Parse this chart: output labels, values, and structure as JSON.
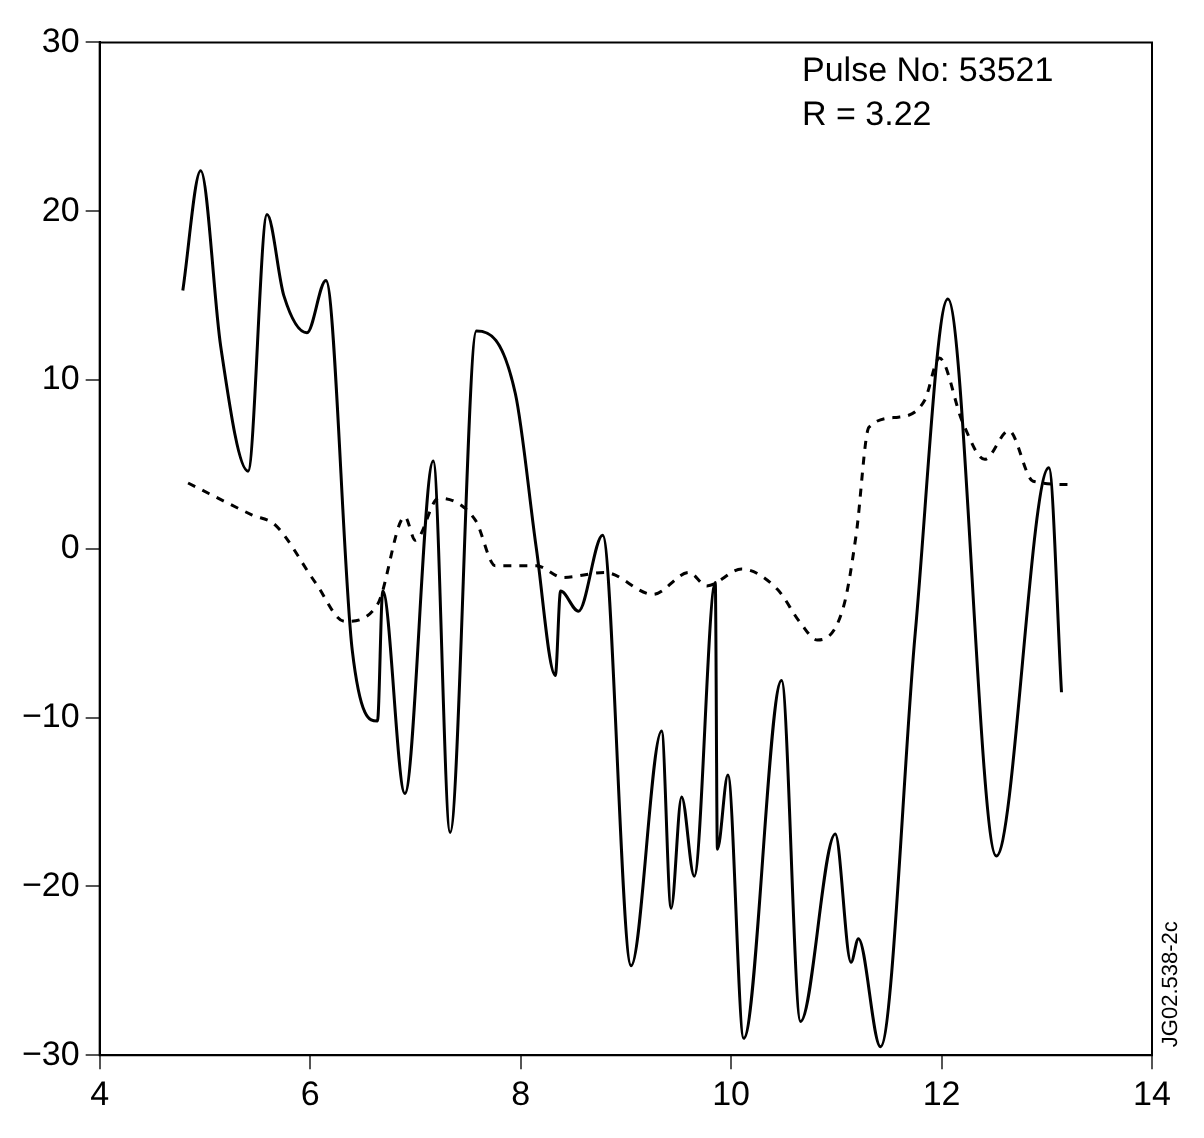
{
  "chart_data": {
    "type": "line",
    "xlim": [
      4,
      14
    ],
    "ylim": [
      -30,
      30
    ],
    "xticks": [
      4,
      6,
      8,
      10,
      12,
      14
    ],
    "yticks": [
      -30,
      -20,
      -10,
      0,
      10,
      20,
      30
    ],
    "grid": false,
    "legend": false,
    "marker": "none",
    "annotations": [
      "Pulse No: 53521",
      "R = 3.22",
      "JG02.538-2c"
    ],
    "series": [
      {
        "color": "#000000",
        "line_style": "solid",
        "x": [
          4.79,
          4.96,
          5.15,
          5.41,
          5.59,
          5.75,
          5.97,
          6.15,
          6.4,
          6.64,
          6.69,
          6.9,
          7.17,
          7.33,
          7.58,
          7.95,
          8.15,
          8.33,
          8.38,
          8.55,
          8.78,
          9.05,
          9.34,
          9.43,
          9.53,
          9.65,
          9.85,
          9.87,
          9.97,
          10.12,
          10.48,
          10.66,
          10.99,
          11.14,
          11.21,
          11.42,
          11.75,
          12.06,
          12.52,
          13.02,
          13.14
        ],
        "values": [
          15.3,
          22.4,
          12,
          4.6,
          19.8,
          15,
          12.8,
          15.9,
          -6,
          -10.2,
          -2.5,
          -14.5,
          5.2,
          -16.8,
          12.9,
          9.2,
          0,
          -7.5,
          -2.5,
          -3.7,
          0.8,
          -24.7,
          -10.8,
          -21.3,
          -14.7,
          -19.4,
          -2,
          -17.8,
          -13.4,
          -29,
          -7.8,
          -28,
          -16.9,
          -24.5,
          -23.1,
          -29.5,
          -5,
          14.8,
          -18.2,
          4.8,
          -8.5
        ]
      },
      {
        "color": "#000000",
        "line_style": "dashed",
        "x": [
          4.84,
          5.45,
          5.67,
          6.05,
          6.33,
          6.64,
          6.9,
          7.0,
          7.22,
          7.57,
          7.76,
          8.15,
          8.4,
          8.8,
          9.26,
          9.6,
          9.77,
          10.1,
          10.44,
          10.66,
          10.82,
          11.07,
          11.19,
          11.31,
          11.59,
          11.84,
          11.98,
          12.2,
          12.41,
          12.64,
          12.87,
          13.24
        ],
        "values": [
          3.9,
          2.0,
          1.4,
          -2.0,
          -4.3,
          -3.3,
          1.9,
          0.5,
          3.0,
          1.7,
          -1.0,
          -1.0,
          -1.7,
          -1.4,
          -2.7,
          -1.4,
          -2.2,
          -1.2,
          -2.4,
          -4.4,
          -5.4,
          -3.4,
          0.9,
          7.2,
          7.8,
          8.8,
          11.3,
          7.5,
          5.3,
          7.0,
          4.0,
          3.8
        ]
      }
    ]
  }
}
